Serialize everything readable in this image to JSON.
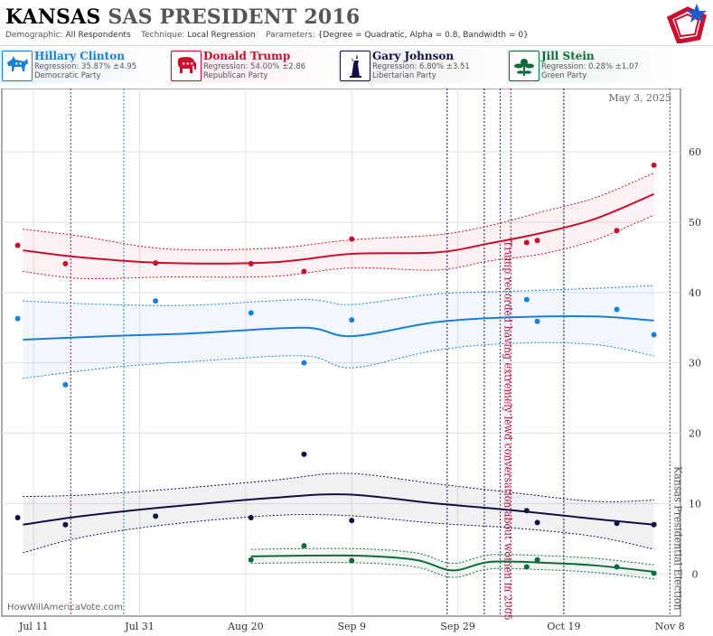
{
  "header": {
    "title_state": "KANSAS",
    "title_rest": "SAS PRESIDENT 2016",
    "demographic_label": "Demographic:",
    "demographic_value": "All Respondents",
    "technique_label": "Technique:",
    "technique_value": "Local Regression",
    "parameters_label": "Parameters:",
    "parameters_value": "{Degree = Quadratic, Alpha = 0.8, Bandwidth = 0}"
  },
  "candidates": [
    {
      "name": "Hillary Clinton",
      "regression": "Regression: 35.87% ±4.95",
      "party": "Democratic Party",
      "color": "#1a7fd8",
      "icon": "donkey-icon"
    },
    {
      "name": "Donald Trump",
      "regression": "Regression: 54.00% ±2.86",
      "party": "Republican Party",
      "color": "#c8102e",
      "icon": "elephant-icon"
    },
    {
      "name": "Gary Johnson",
      "regression": "Regression: 6.80% ±3.51",
      "party": "Libertarian Party",
      "color": "#111144",
      "icon": "liberty-statue-icon"
    },
    {
      "name": "Jill Stein",
      "regression": "Regression: 0.28% ±1.07",
      "party": "Green Party",
      "color": "#0e6b3a",
      "icon": "flower-icon"
    }
  ],
  "watermark": "HowWillAmericaVote.com",
  "chart_data": {
    "type": "line",
    "date_label": "May 3, 2025",
    "x_ticks": [
      "Jul 11",
      "Jul 31",
      "Aug 20",
      "Sep 9",
      "Sep 29",
      "Oct 19",
      "Nov 8"
    ],
    "x_range": [
      "2016-07-05",
      "2016-11-10"
    ],
    "y_ticks": [
      0,
      10,
      20,
      30,
      40,
      50,
      60
    ],
    "ylim": [
      -6,
      69
    ],
    "grid": true,
    "annotations": [
      {
        "text": "Trump recorded having extremely lewd conversation about women in 2005",
        "date": "2016-10-07",
        "color": "#b0103a"
      },
      {
        "text": "Kansas Presidential Election",
        "date": "2016-11-08",
        "color": "#555555"
      }
    ],
    "event_lines": [
      {
        "date": "2016-07-18",
        "color": "#b0103a"
      },
      {
        "date": "2016-07-28",
        "color": "#1a7fd8"
      },
      {
        "date": "2016-09-27",
        "color": "#111144"
      },
      {
        "date": "2016-10-04",
        "color": "#111144"
      },
      {
        "date": "2016-10-07",
        "color": "#b0103a"
      },
      {
        "date": "2016-10-09",
        "color": "#b0103a"
      },
      {
        "date": "2016-10-19",
        "color": "#111144"
      },
      {
        "date": "2016-11-08",
        "color": "#555555"
      }
    ],
    "series": [
      {
        "name": "Trump",
        "color": "#c8102e",
        "trend": [
          [
            "2016-07-09",
            46
          ],
          [
            "2016-07-20",
            45
          ],
          [
            "2016-08-05",
            44.2
          ],
          [
            "2016-08-25",
            44.3
          ],
          [
            "2016-09-09",
            45.5
          ],
          [
            "2016-09-25",
            45.7
          ],
          [
            "2016-10-05",
            47
          ],
          [
            "2016-10-15",
            48.5
          ],
          [
            "2016-10-25",
            50.5
          ],
          [
            "2016-11-05",
            54
          ]
        ],
        "band": [
          3,
          3,
          2,
          2,
          2,
          2.5,
          2.5,
          3,
          3,
          3
        ],
        "points": [
          [
            "2016-07-08",
            46.7
          ],
          [
            "2016-07-17",
            44.1
          ],
          [
            "2016-08-03",
            44.2
          ],
          [
            "2016-08-21",
            44.1
          ],
          [
            "2016-08-31",
            43.0
          ],
          [
            "2016-09-09",
            47.6
          ],
          [
            "2016-10-12",
            47.1
          ],
          [
            "2016-10-14",
            47.4
          ],
          [
            "2016-10-29",
            48.8
          ],
          [
            "2016-11-05",
            58.1
          ]
        ]
      },
      {
        "name": "Clinton",
        "color": "#1a7fd8",
        "trend": [
          [
            "2016-07-09",
            33.3
          ],
          [
            "2016-07-25",
            33.8
          ],
          [
            "2016-08-10",
            34.2
          ],
          [
            "2016-08-31",
            35
          ],
          [
            "2016-09-09",
            33.8
          ],
          [
            "2016-09-25",
            35.8
          ],
          [
            "2016-10-10",
            36.5
          ],
          [
            "2016-10-25",
            36.6
          ],
          [
            "2016-11-05",
            36
          ]
        ],
        "band": [
          5.5,
          4.5,
          4,
          4,
          4.5,
          4,
          3.7,
          4,
          5
        ],
        "points": [
          [
            "2016-07-08",
            36.3
          ],
          [
            "2016-07-17",
            26.9
          ],
          [
            "2016-08-03",
            38.8
          ],
          [
            "2016-08-21",
            37.1
          ],
          [
            "2016-08-31",
            30.0
          ],
          [
            "2016-09-09",
            36.1
          ],
          [
            "2016-10-12",
            39.0
          ],
          [
            "2016-10-14",
            35.9
          ],
          [
            "2016-10-29",
            37.6
          ],
          [
            "2016-11-05",
            34.0
          ]
        ]
      },
      {
        "name": "Johnson",
        "color": "#111144",
        "trend": [
          [
            "2016-07-09",
            7
          ],
          [
            "2016-07-20",
            8.2
          ],
          [
            "2016-08-05",
            9.5
          ],
          [
            "2016-08-25",
            10.8
          ],
          [
            "2016-09-08",
            11.3
          ],
          [
            "2016-09-25",
            10
          ],
          [
            "2016-10-10",
            9
          ],
          [
            "2016-10-25",
            7.8
          ],
          [
            "2016-11-05",
            7
          ]
        ],
        "band": [
          4,
          3,
          2.5,
          2.5,
          3,
          2.8,
          2.5,
          2.5,
          3.5
        ],
        "points": [
          [
            "2016-07-08",
            8.0
          ],
          [
            "2016-07-17",
            7.0
          ],
          [
            "2016-08-03",
            8.2
          ],
          [
            "2016-08-21",
            8.0
          ],
          [
            "2016-08-31",
            17.0
          ],
          [
            "2016-09-09",
            7.6
          ],
          [
            "2016-10-12",
            9.0
          ],
          [
            "2016-10-14",
            7.3
          ],
          [
            "2016-10-29",
            7.2
          ],
          [
            "2016-11-05",
            7.0
          ]
        ]
      },
      {
        "name": "Stein",
        "color": "#0e6b3a",
        "trend": [
          [
            "2016-08-21",
            2.5
          ],
          [
            "2016-09-09",
            2.6
          ],
          [
            "2016-09-21",
            2
          ],
          [
            "2016-09-28",
            0.5
          ],
          [
            "2016-10-05",
            1.7
          ],
          [
            "2016-10-15",
            1.6
          ],
          [
            "2016-10-25",
            1.2
          ],
          [
            "2016-11-05",
            0.3
          ]
        ],
        "band": [
          1,
          1,
          1,
          1,
          1,
          1,
          1,
          1
        ],
        "points": [
          [
            "2016-08-21",
            2.0
          ],
          [
            "2016-08-31",
            4.0
          ],
          [
            "2016-09-09",
            1.9
          ],
          [
            "2016-10-12",
            1.0
          ],
          [
            "2016-10-14",
            2.0
          ],
          [
            "2016-10-29",
            1.0
          ],
          [
            "2016-11-05",
            0.1
          ]
        ]
      }
    ]
  }
}
